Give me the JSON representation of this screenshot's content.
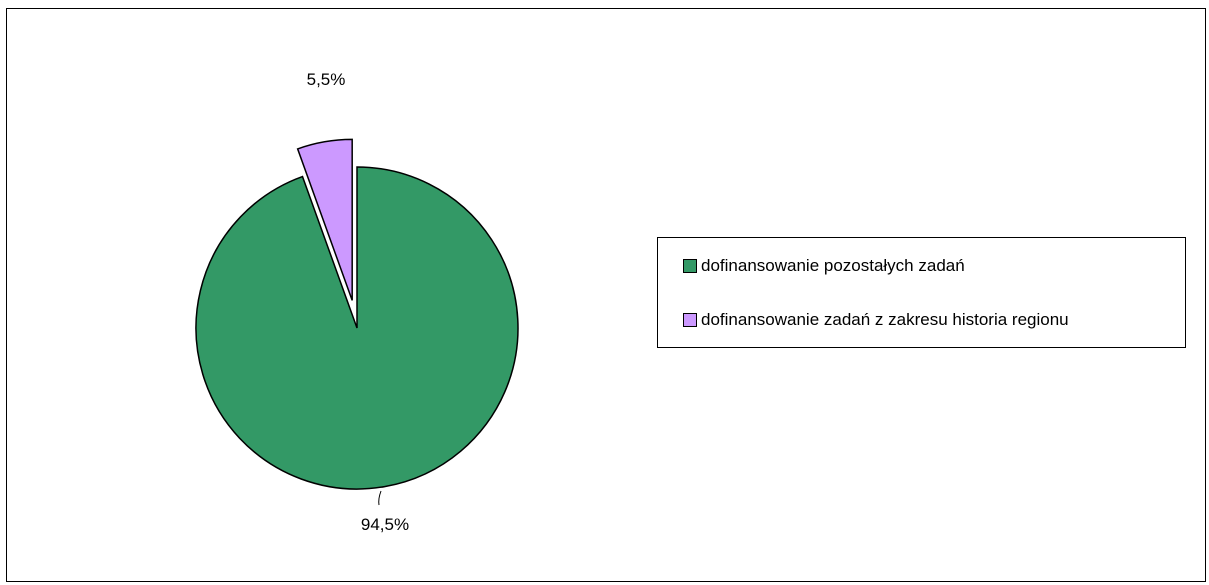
{
  "chart_data": {
    "type": "pie",
    "slices": [
      {
        "name": "dofinansowanie pozostałych zadań",
        "value": 94.5,
        "label": "94,5%",
        "color": "#339966",
        "exploded": false
      },
      {
        "name": "dofinansowanie zadań z zakresu historia regionu",
        "value": 5.5,
        "label": "5,5%",
        "color": "#cc99ff",
        "exploded": true
      }
    ],
    "legend_position": "right"
  }
}
